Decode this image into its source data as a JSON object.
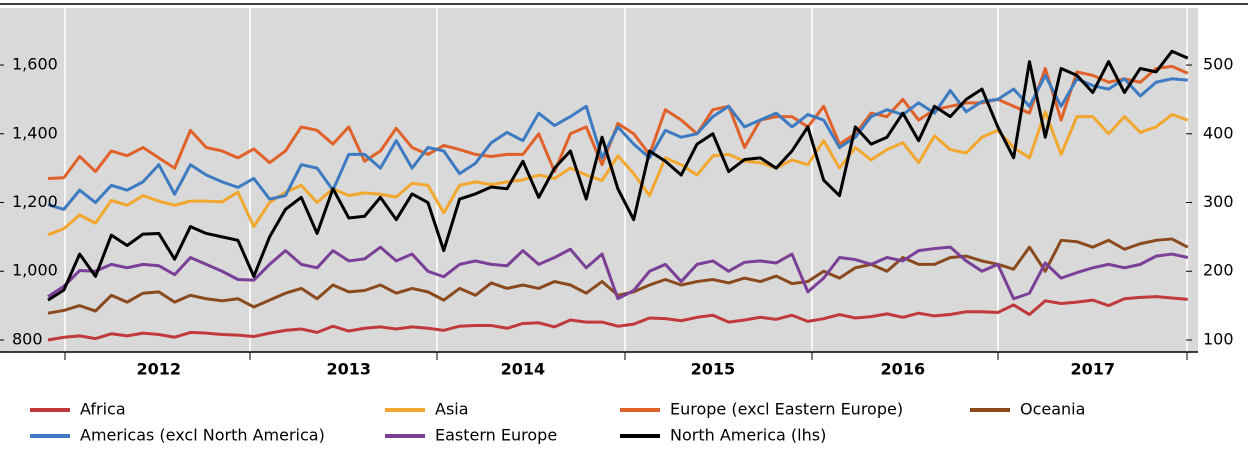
{
  "chart_data": {
    "type": "line",
    "categories": [
      null,
      null,
      null,
      null,
      null,
      null,
      null,
      "2012",
      null,
      null,
      null,
      null,
      null,
      null,
      null,
      null,
      null,
      null,
      null,
      "2013",
      null,
      null,
      null,
      null,
      null,
      null,
      null,
      null,
      null,
      null,
      "2014",
      null,
      null,
      null,
      null,
      null,
      null,
      null,
      null,
      null,
      null,
      null,
      "2015",
      null,
      null,
      null,
      null,
      null,
      null,
      null,
      null,
      null,
      null,
      null,
      "2016",
      null,
      null,
      null,
      null,
      null,
      null,
      null,
      null,
      null,
      null,
      null,
      "2017",
      null,
      null,
      null,
      null,
      null,
      null
    ],
    "ylim": [
      765,
      1766
    ],
    "yticks": [
      800,
      {
        "value": 1000,
        "label": "1,000"
      },
      {
        "value": 1200,
        "label": "1,200"
      },
      {
        "value": 1400,
        "label": "1,400"
      },
      {
        "value": 1600,
        "label": "1,600"
      }
    ],
    "y2lim": [
      82.5,
      583
    ],
    "y2ticks": [
      100,
      200,
      300,
      400,
      500
    ],
    "legend": "bottom",
    "series": [
      {
        "name": "Africa",
        "color": "#c0393b",
        "axis": "y2",
        "values": [
          100,
          104,
          106,
          102,
          109,
          106,
          110,
          108,
          104,
          111,
          110,
          108,
          107,
          105,
          110,
          114,
          116,
          111,
          120,
          113,
          117,
          119,
          116,
          119,
          117,
          114,
          120,
          121,
          121,
          117,
          124,
          125,
          119,
          129,
          126,
          126,
          120,
          123,
          132,
          131,
          128,
          133,
          136,
          126,
          129,
          133,
          130,
          136,
          127,
          131,
          137,
          132,
          134,
          138,
          133,
          139,
          135,
          137,
          141,
          141,
          140,
          151,
          137,
          157,
          153,
          155,
          158,
          150,
          160,
          162,
          163,
          161,
          159
        ]
      },
      {
        "name": "Asia",
        "color": "#f2a72f",
        "axis": "y2",
        "values": [
          253,
          262,
          282,
          270,
          303,
          296,
          310,
          302,
          296,
          302,
          302,
          301,
          315,
          265,
          300,
          315,
          325,
          300,
          320,
          310,
          314,
          312,
          308,
          328,
          325,
          285,
          325,
          330,
          326,
          330,
          333,
          340,
          335,
          350,
          340,
          332,
          368,
          342,
          310,
          365,
          355,
          340,
          368,
          370,
          360,
          358,
          350,
          362,
          355,
          390,
          350,
          380,
          362,
          377,
          387,
          358,
          397,
          377,
          372,
          395,
          405,
          380,
          365,
          432,
          370,
          425,
          425,
          400,
          425,
          402,
          410,
          428,
          420
        ]
      },
      {
        "name": "Europe (excl Eastern Europe)",
        "color": "#e0622a",
        "axis": "y2",
        "values": [
          335,
          336,
          367,
          345,
          375,
          368,
          380,
          365,
          350,
          405,
          380,
          375,
          365,
          378,
          358,
          375,
          410,
          405,
          385,
          410,
          360,
          375,
          408,
          380,
          370,
          383,
          377,
          370,
          367,
          370,
          370,
          400,
          345,
          400,
          410,
          355,
          415,
          400,
          370,
          435,
          420,
          400,
          435,
          440,
          380,
          420,
          425,
          425,
          410,
          440,
          385,
          400,
          430,
          425,
          450,
          420,
          435,
          440,
          445,
          445,
          450,
          440,
          430,
          495,
          420,
          490,
          485,
          475,
          480,
          475,
          495,
          498,
          488
        ]
      },
      {
        "name": "Oceania",
        "color": "#8b4a1e",
        "axis": "y2",
        "values": [
          139,
          143,
          150,
          142,
          165,
          155,
          168,
          170,
          155,
          165,
          160,
          157,
          160,
          148,
          158,
          168,
          175,
          160,
          180,
          170,
          172,
          180,
          168,
          175,
          170,
          158,
          175,
          165,
          183,
          175,
          180,
          175,
          185,
          180,
          168,
          185,
          165,
          170,
          180,
          188,
          180,
          185,
          188,
          183,
          190,
          185,
          193,
          182,
          185,
          200,
          190,
          205,
          210,
          200,
          220,
          210,
          210,
          220,
          222,
          215,
          210,
          203,
          235,
          200,
          245,
          243,
          235,
          245,
          232,
          240,
          245,
          247,
          235
        ]
      },
      {
        "name": "Americas (excl North America)",
        "color": "#3c7bc1",
        "axis": "y2",
        "values": [
          297,
          290,
          318,
          300,
          325,
          318,
          330,
          355,
          312,
          355,
          340,
          330,
          322,
          335,
          305,
          310,
          355,
          350,
          318,
          370,
          370,
          350,
          390,
          350,
          380,
          375,
          342,
          357,
          387,
          402,
          390,
          430,
          412,
          425,
          440,
          365,
          410,
          385,
          365,
          405,
          395,
          400,
          425,
          440,
          410,
          420,
          430,
          410,
          428,
          420,
          380,
          395,
          425,
          435,
          428,
          445,
          430,
          463,
          432,
          447,
          450,
          465,
          440,
          485,
          440,
          480,
          470,
          465,
          480,
          455,
          475,
          480,
          478
        ]
      },
      {
        "name": "Eastern Europe",
        "color": "#7b3f98",
        "axis": "y2",
        "values": [
          163,
          178,
          201,
          200,
          210,
          205,
          210,
          208,
          195,
          220,
          210,
          200,
          188,
          187,
          210,
          230,
          210,
          205,
          230,
          215,
          218,
          235,
          215,
          225,
          200,
          192,
          210,
          215,
          210,
          208,
          230,
          210,
          220,
          232,
          205,
          225,
          160,
          172,
          200,
          210,
          185,
          210,
          215,
          200,
          213,
          215,
          212,
          225,
          170,
          190,
          220,
          217,
          210,
          220,
          215,
          230,
          233,
          235,
          215,
          200,
          210,
          160,
          168,
          212,
          190,
          198,
          205,
          210,
          205,
          210,
          222,
          225,
          220
        ]
      },
      {
        "name": "North America (lhs)",
        "color": "#000000",
        "values": [
          916,
          945,
          1050,
          985,
          1105,
          1075,
          1108,
          1110,
          1035,
          1130,
          1110,
          1100,
          1090,
          985,
          1100,
          1180,
          1215,
          1110,
          1240,
          1155,
          1160,
          1215,
          1150,
          1225,
          1200,
          1060,
          1210,
          1225,
          1245,
          1240,
          1320,
          1215,
          1300,
          1350,
          1210,
          1390,
          1240,
          1150,
          1350,
          1320,
          1280,
          1370,
          1400,
          1290,
          1325,
          1330,
          1300,
          1350,
          1420,
          1265,
          1220,
          1420,
          1370,
          1390,
          1460,
          1380,
          1480,
          1450,
          1500,
          1530,
          1420,
          1330,
          1610,
          1390,
          1590,
          1570,
          1520,
          1610,
          1520,
          1590,
          1580,
          1640,
          1620
        ]
      }
    ]
  }
}
